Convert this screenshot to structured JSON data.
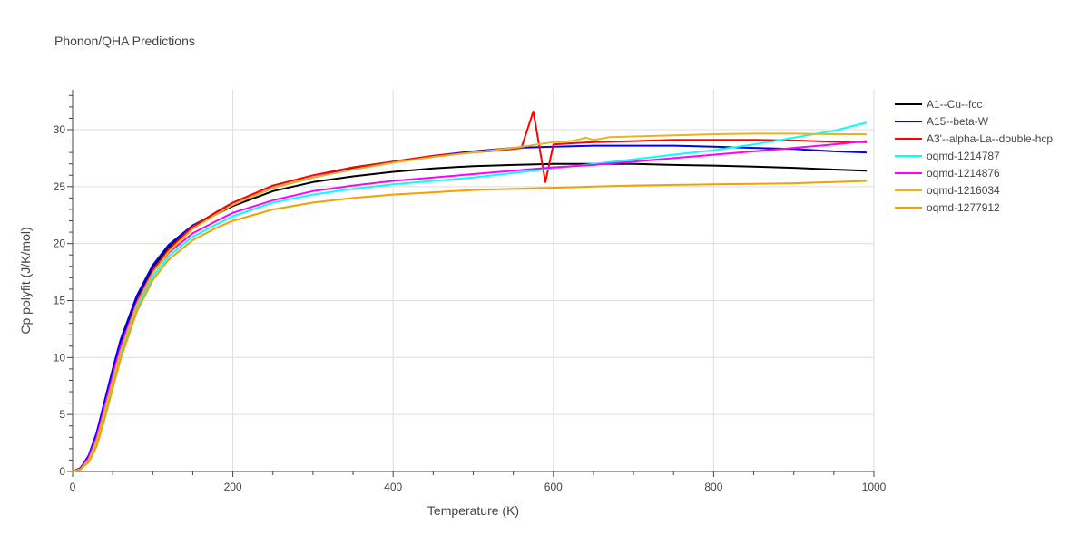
{
  "chart_data": {
    "type": "line",
    "title": "Phonon/QHA Predictions",
    "xlabel": "Temperature (K)",
    "ylabel": "Cp polyfit (J/K/mol)",
    "xlim": [
      0,
      1000
    ],
    "ylim": [
      0,
      33.5
    ],
    "xticks": [
      0,
      200,
      400,
      600,
      800,
      1000
    ],
    "yticks": [
      0,
      5,
      10,
      15,
      20,
      25,
      30
    ],
    "grid": true,
    "legend_position": "right",
    "series": [
      {
        "name": "A1--Cu--fcc",
        "color": "#000000",
        "x": [
          0,
          10,
          20,
          30,
          40,
          50,
          60,
          80,
          100,
          120,
          150,
          180,
          200,
          250,
          300,
          350,
          400,
          450,
          500,
          550,
          600,
          650,
          700,
          750,
          800,
          850,
          900,
          950,
          990
        ],
        "y": [
          0,
          0.3,
          1.3,
          3.3,
          6.0,
          8.8,
          11.4,
          15.2,
          17.9,
          19.7,
          21.5,
          22.6,
          23.3,
          24.6,
          25.4,
          25.9,
          26.3,
          26.6,
          26.8,
          26.9,
          27.0,
          27.0,
          27.0,
          26.9,
          26.85,
          26.75,
          26.65,
          26.5,
          26.4
        ]
      },
      {
        "name": "A15--beta-W",
        "color": "#0000ff",
        "x": [
          0,
          10,
          20,
          30,
          40,
          50,
          60,
          80,
          100,
          120,
          150,
          180,
          200,
          250,
          300,
          350,
          400,
          450,
          500,
          550,
          600,
          650,
          700,
          750,
          800,
          850,
          900,
          950,
          990
        ],
        "y": [
          0,
          0.3,
          1.4,
          3.4,
          6.2,
          9.0,
          11.6,
          15.4,
          18.1,
          19.9,
          21.6,
          22.7,
          23.4,
          24.9,
          25.8,
          26.6,
          27.2,
          27.7,
          28.1,
          28.4,
          28.5,
          28.6,
          28.6,
          28.6,
          28.5,
          28.4,
          28.3,
          28.1,
          28.0
        ]
      },
      {
        "name": "A3'--alpha-La--double-hcp",
        "color": "#ff0000",
        "x": [
          0,
          10,
          20,
          30,
          40,
          50,
          60,
          80,
          100,
          120,
          150,
          180,
          200,
          250,
          300,
          350,
          400,
          450,
          500,
          550,
          560,
          575,
          590,
          600,
          620,
          650,
          700,
          750,
          800,
          850,
          900,
          950,
          990
        ],
        "y": [
          0,
          0.2,
          1.1,
          2.8,
          5.5,
          8.2,
          10.8,
          14.8,
          17.6,
          19.5,
          21.5,
          22.8,
          23.6,
          25.1,
          26.0,
          26.7,
          27.2,
          27.7,
          28.0,
          28.3,
          28.4,
          31.6,
          25.4,
          28.7,
          28.8,
          28.9,
          29.0,
          29.1,
          29.1,
          29.1,
          29.05,
          28.95,
          28.9
        ]
      },
      {
        "name": "oqmd-1214787",
        "color": "#00ffff",
        "x": [
          0,
          10,
          20,
          30,
          40,
          50,
          60,
          80,
          100,
          120,
          150,
          180,
          200,
          250,
          300,
          350,
          400,
          450,
          500,
          550,
          600,
          650,
          700,
          750,
          800,
          850,
          900,
          950,
          990
        ],
        "y": [
          0,
          0.2,
          0.9,
          2.4,
          4.9,
          7.6,
          10.2,
          14.3,
          17.1,
          18.9,
          20.6,
          21.7,
          22.4,
          23.6,
          24.3,
          24.8,
          25.2,
          25.5,
          25.8,
          26.2,
          26.6,
          27.0,
          27.4,
          27.8,
          28.2,
          28.7,
          29.3,
          29.9,
          30.6
        ]
      },
      {
        "name": "oqmd-1214876",
        "color": "#ff00ff",
        "x": [
          0,
          10,
          20,
          30,
          40,
          50,
          60,
          80,
          100,
          120,
          150,
          180,
          200,
          250,
          300,
          350,
          400,
          450,
          500,
          550,
          600,
          650,
          700,
          750,
          800,
          850,
          900,
          950,
          990
        ],
        "y": [
          0,
          0.25,
          1.2,
          3.0,
          5.7,
          8.4,
          11.0,
          14.8,
          17.5,
          19.2,
          20.9,
          22.0,
          22.7,
          23.8,
          24.6,
          25.1,
          25.5,
          25.8,
          26.1,
          26.4,
          26.7,
          26.9,
          27.2,
          27.5,
          27.8,
          28.1,
          28.4,
          28.7,
          29.0
        ]
      },
      {
        "name": "oqmd-1216034",
        "color": "#e6b422",
        "x": [
          0,
          10,
          20,
          30,
          40,
          50,
          60,
          80,
          100,
          120,
          150,
          180,
          200,
          250,
          300,
          350,
          400,
          450,
          500,
          550,
          600,
          620,
          630,
          640,
          650,
          660,
          670,
          700,
          750,
          800,
          850,
          900,
          950,
          990
        ],
        "y": [
          0,
          0.2,
          1.0,
          2.7,
          5.3,
          8.0,
          10.6,
          14.6,
          17.4,
          19.3,
          21.3,
          22.6,
          23.4,
          24.9,
          25.8,
          26.5,
          27.1,
          27.6,
          28.0,
          28.4,
          28.9,
          29.0,
          29.1,
          29.3,
          29.1,
          29.2,
          29.35,
          29.4,
          29.5,
          29.6,
          29.65,
          29.65,
          29.6,
          29.6
        ]
      },
      {
        "name": "oqmd-1277912",
        "color": "#f5a000",
        "x": [
          0,
          10,
          20,
          30,
          40,
          50,
          60,
          80,
          100,
          120,
          150,
          180,
          200,
          250,
          300,
          350,
          400,
          450,
          500,
          550,
          600,
          650,
          700,
          750,
          800,
          850,
          900,
          950,
          990
        ],
        "y": [
          0,
          0.2,
          0.8,
          2.2,
          4.6,
          7.3,
          9.9,
          14.0,
          16.8,
          18.6,
          20.3,
          21.4,
          22.0,
          23.0,
          23.6,
          24.0,
          24.3,
          24.5,
          24.7,
          24.8,
          24.9,
          25.0,
          25.1,
          25.15,
          25.2,
          25.25,
          25.3,
          25.4,
          25.5
        ]
      }
    ]
  }
}
